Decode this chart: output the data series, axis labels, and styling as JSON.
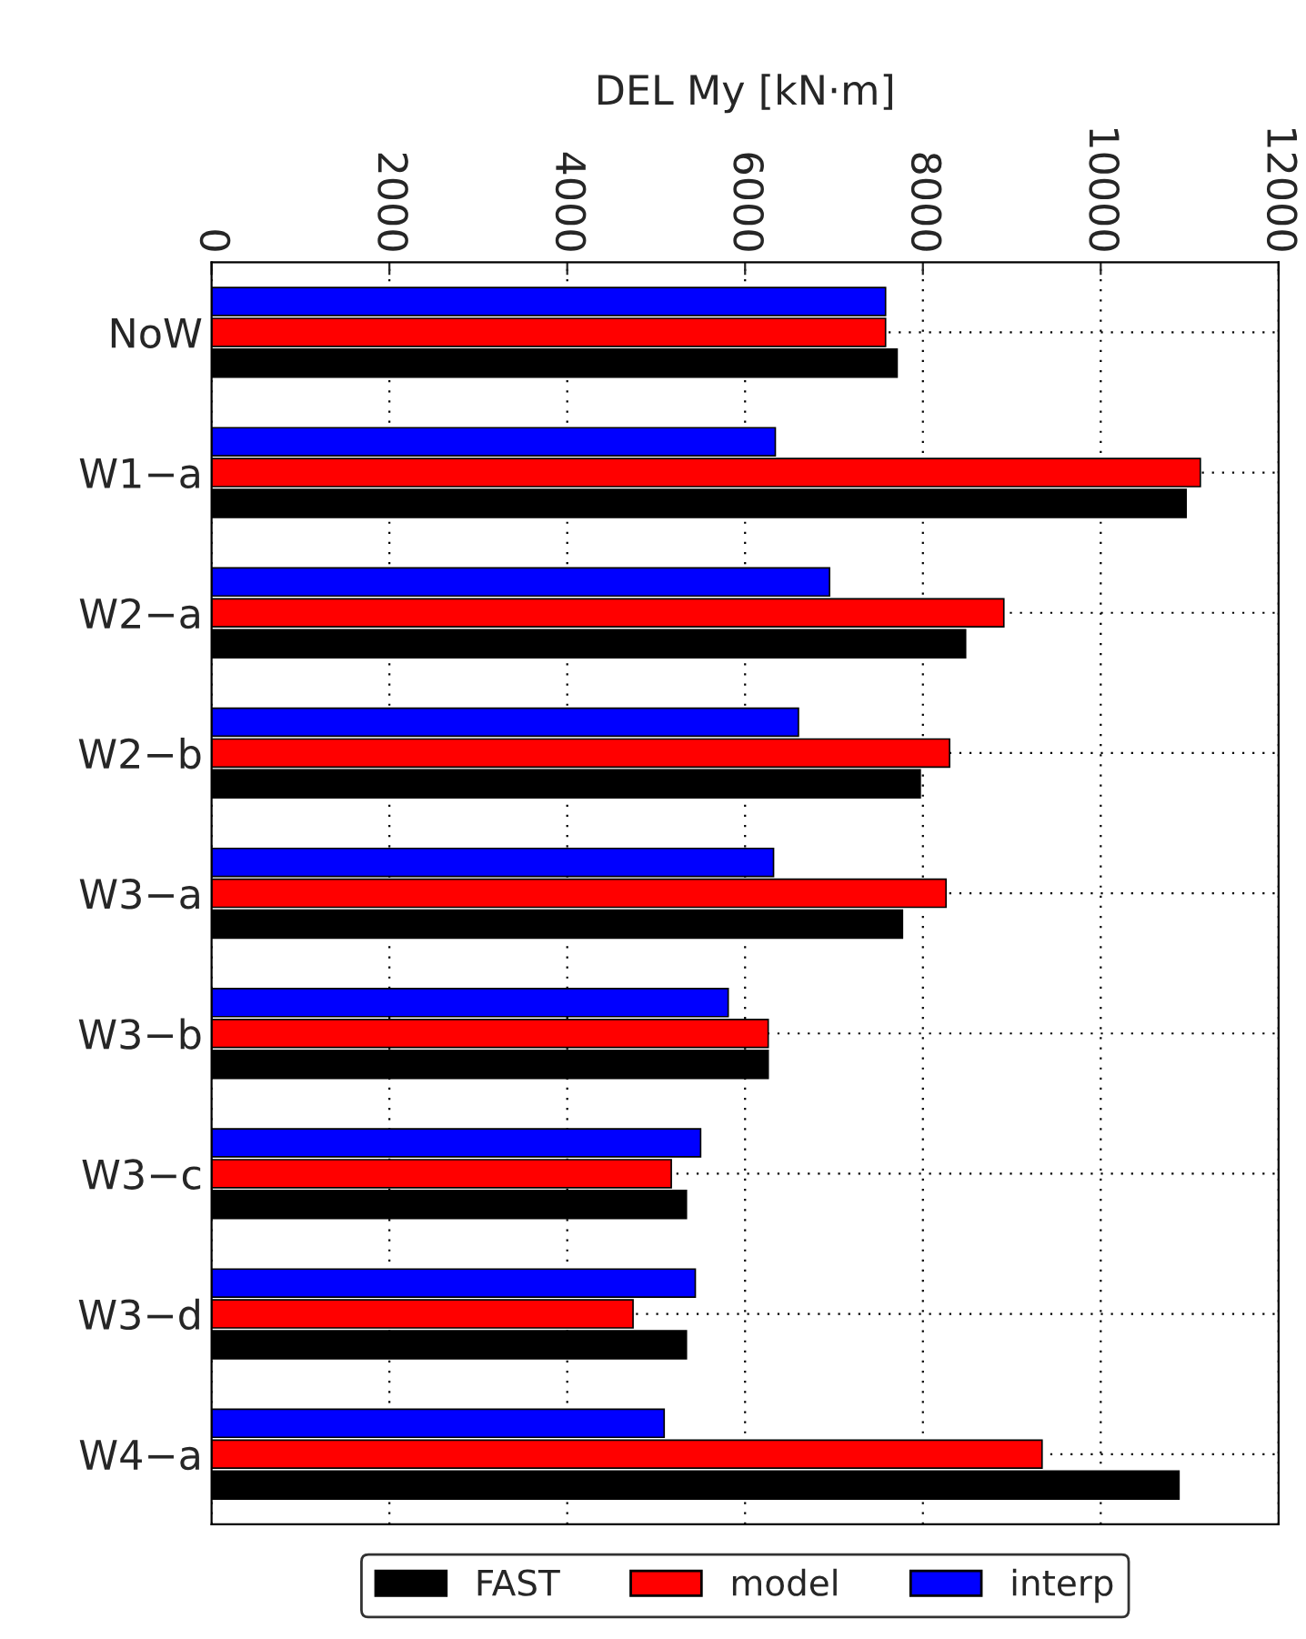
{
  "chart_data": {
    "type": "bar",
    "orientation": "horizontal",
    "xlabel": "DEL My [kN·m]",
    "categories": [
      "NoW",
      "W1−a",
      "W2−a",
      "W2−b",
      "W3−a",
      "W3−b",
      "W3−c",
      "W3−d",
      "W4−a"
    ],
    "series": [
      {
        "name": "interp",
        "color": "#0000ff",
        "values": [
          7580,
          6340,
          6950,
          6600,
          6320,
          5810,
          5500,
          5440,
          5090
        ]
      },
      {
        "name": "model",
        "color": "#ff0000",
        "values": [
          7580,
          11120,
          8910,
          8300,
          8260,
          6260,
          5170,
          4740,
          9340
        ]
      },
      {
        "name": "FAST",
        "color": "#000000",
        "values": [
          7710,
          10960,
          8480,
          7970,
          7770,
          6260,
          5340,
          5340,
          10880
        ]
      }
    ],
    "xlim": [
      0,
      12000
    ],
    "xticks": [
      0,
      2000,
      4000,
      6000,
      8000,
      10000,
      12000
    ],
    "grid": true,
    "legend": "bottom"
  }
}
